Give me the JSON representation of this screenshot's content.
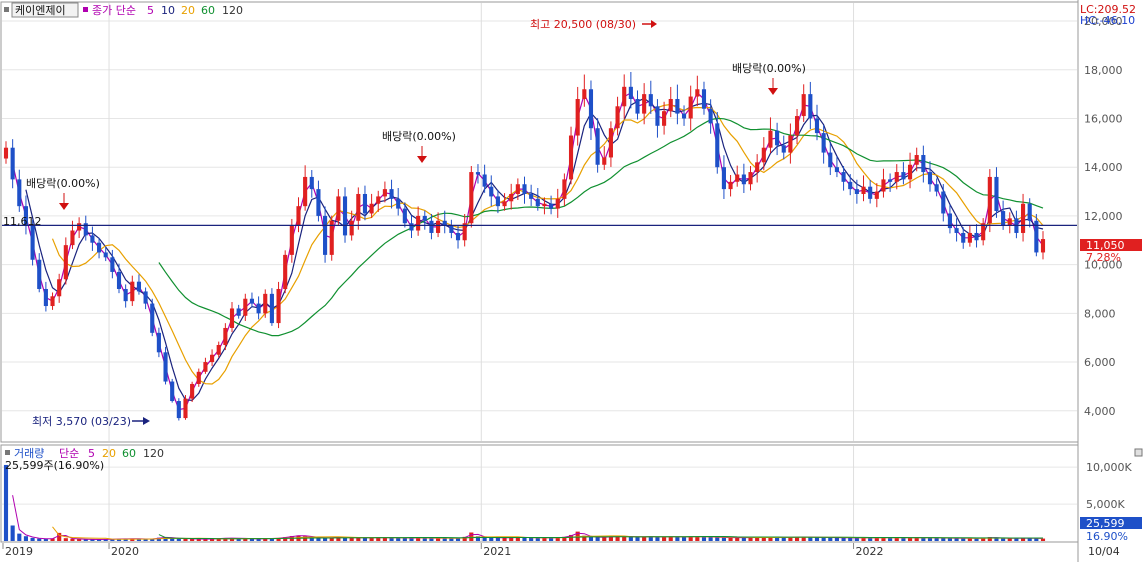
{
  "price_panel": {
    "stock_name": "케이엔제이",
    "ma_title": "종가 단순",
    "ma_periods": [
      "5",
      "10",
      "20",
      "60",
      "120"
    ],
    "ma_colors": [
      "#b000b0",
      "#1a237e",
      "#e8a000",
      "#109030",
      "#333333"
    ],
    "lc_label": "LC:209.52",
    "hc_label": "HC:-46.10",
    "high_annotation": "최고 20,500 (08/30)",
    "low_annotation": "최저 3,570 (03/23)",
    "dividend_label": "배당락(0.00%)",
    "ref_price_label": "11,612",
    "current_price_tag": "11,050",
    "current_change_tag": "7.28%"
  },
  "volume_panel": {
    "title": "거래량",
    "ma_title": "단순",
    "ma_periods": [
      "5",
      "20",
      "60",
      "120"
    ],
    "last_volume_label": "25,599주(16.90%)",
    "current_volume_tag": "25,599",
    "current_change_tag": "16.90%"
  },
  "x_axis": {
    "labels": [
      "2019",
      "2020",
      "2021",
      "2022"
    ],
    "right_label": "10/04"
  },
  "colors": {
    "up": "#e02020",
    "down": "#1e50c8",
    "ref_line": "#1a237e"
  },
  "chart_data": {
    "type": "candlestick",
    "price_axis": {
      "ticks": [
        4000,
        6000,
        8000,
        10000,
        12000,
        14000,
        16000,
        18000,
        20000
      ],
      "ylim": [
        2800,
        20700
      ]
    },
    "volume_axis": {
      "ticks": [
        5000,
        10000
      ],
      "tick_labels": [
        "5,000K",
        "10,000K"
      ]
    },
    "reference_price": 11612,
    "high": {
      "value": 20500,
      "date": "08/30"
    },
    "low": {
      "value": 3570,
      "date": "03/23"
    },
    "last_price": 11050,
    "last_volume": 25599,
    "close": [
      14800,
      13500,
      12400,
      11600,
      10200,
      9000,
      8300,
      8700,
      9400,
      10800,
      11400,
      11700,
      11200,
      10900,
      10500,
      10300,
      9700,
      9000,
      8500,
      9300,
      8900,
      8400,
      7200,
      6400,
      5200,
      4400,
      3700,
      4500,
      5100,
      5600,
      6000,
      6300,
      6700,
      7400,
      8200,
      7900,
      8600,
      8400,
      8000,
      8800,
      7600,
      9000,
      10400,
      11600,
      12400,
      13600,
      13100,
      12000,
      10400,
      11800,
      12800,
      11200,
      11800,
      12900,
      12100,
      12500,
      12800,
      13100,
      12700,
      12300,
      11700,
      11400,
      12000,
      11800,
      11300,
      11800,
      11600,
      11300,
      11000,
      11700,
      13800,
      13700,
      13200,
      12800,
      12400,
      12600,
      12900,
      13300,
      12900,
      12700,
      12400,
      12500,
      12300,
      12700,
      13500,
      15300,
      16800,
      17200,
      15600,
      14100,
      14400,
      15600,
      16500,
      17300,
      16800,
      16200,
      17000,
      16500,
      15700,
      16300,
      16800,
      16200,
      16000,
      16900,
      17200,
      16400,
      15800,
      14000,
      13100,
      13400,
      13700,
      13300,
      13800,
      14200,
      14800,
      15500,
      14900,
      14600,
      15300,
      16100,
      17000,
      16000,
      15400,
      14600,
      14000,
      13800,
      13400,
      13100,
      12900,
      13200,
      12700,
      13000,
      13500,
      13400,
      13800,
      13500,
      14100,
      14500,
      13800,
      13300,
      13000,
      12100,
      11500,
      11300,
      10900,
      11300,
      11000,
      11700,
      13600,
      12200,
      11600,
      11900,
      11300,
      12500,
      11800,
      10500,
      11050
    ],
    "volume_k": [
      10300,
      2100,
      1000,
      650,
      420,
      320,
      280,
      350,
      1100,
      380,
      300,
      270,
      230,
      210,
      200,
      220,
      250,
      280,
      300,
      320,
      280,
      250,
      300,
      450,
      520,
      400,
      350,
      320,
      280,
      260,
      250,
      300,
      350,
      380,
      400,
      360,
      340,
      300,
      280,
      330,
      350,
      420,
      520,
      680,
      760,
      650,
      560,
      480,
      420,
      470,
      520,
      460,
      420,
      480,
      450,
      440,
      430,
      470,
      460,
      430,
      400,
      390,
      410,
      400,
      380,
      390,
      400,
      380,
      370,
      560,
      1150,
      640,
      520,
      460,
      420,
      440,
      460,
      500,
      470,
      450,
      420,
      430,
      410,
      450,
      560,
      820,
      1270,
      720,
      560,
      500,
      520,
      580,
      600,
      640,
      590,
      560,
      600,
      580,
      540,
      560,
      580,
      560,
      540,
      580,
      600,
      570,
      540,
      500,
      470,
      460,
      470,
      450,
      470,
      480,
      500,
      520,
      490,
      480,
      500,
      530,
      560,
      520,
      500,
      480,
      460,
      450,
      440,
      430,
      420,
      430,
      410,
      420,
      440,
      430,
      440,
      430,
      450,
      460,
      440,
      420,
      410,
      400,
      380,
      370,
      360,
      370,
      360,
      380,
      520,
      400,
      380,
      390,
      370,
      400,
      380,
      340,
      330
    ]
  }
}
